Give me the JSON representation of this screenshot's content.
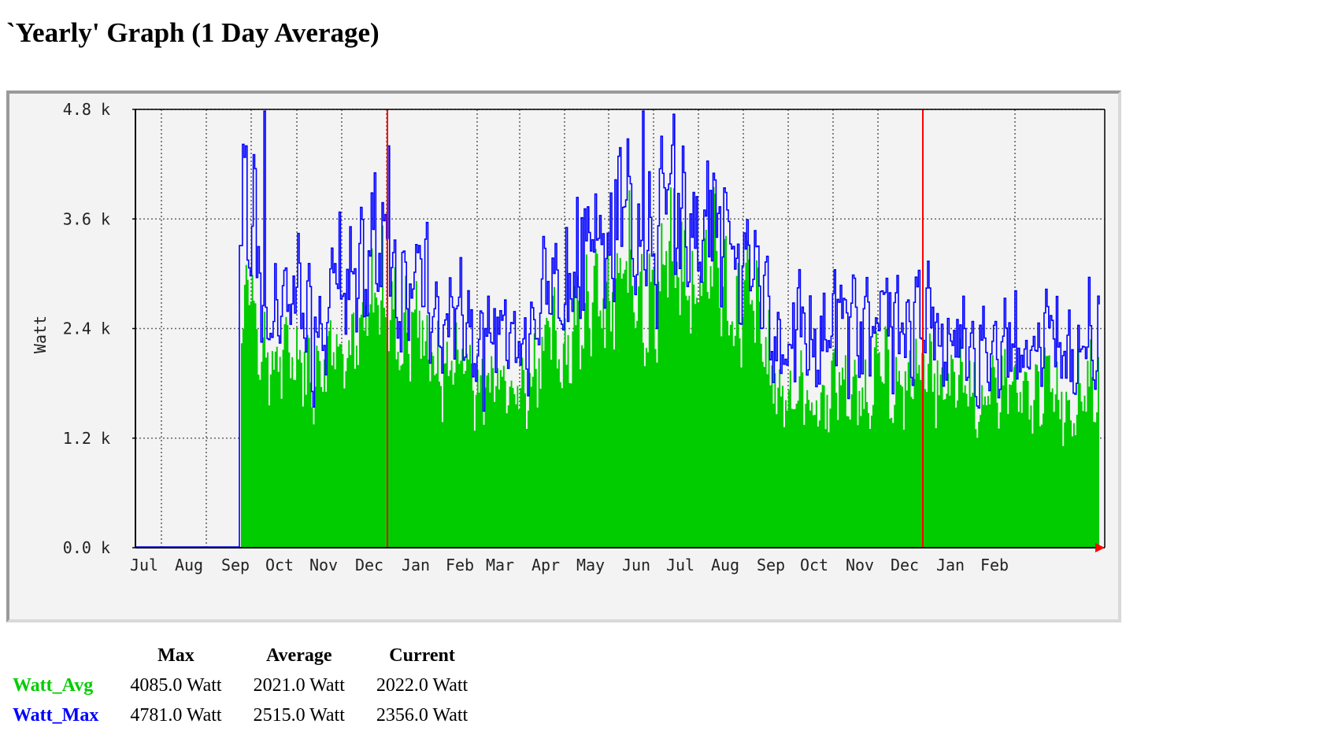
{
  "page": {
    "title": "`Yearly' Graph (1 Day Average)"
  },
  "legend": {
    "headers": [
      "",
      "Max",
      "Average",
      "Current"
    ],
    "rows": [
      {
        "name": "Watt_Avg",
        "color": "#00cc00",
        "max": "4085.0 Watt",
        "average": "2021.0 Watt",
        "current": "2022.0 Watt"
      },
      {
        "name": "Watt_Max",
        "color": "#0000ff",
        "max": "4781.0 Watt",
        "average": "2515.0 Watt",
        "current": "2356.0 Watt"
      }
    ]
  },
  "chart_data": {
    "type": "area",
    "title": "",
    "ylabel": "Watt",
    "xlabel": "",
    "ylim": [
      0,
      4800
    ],
    "yticks": [
      "0.0 k",
      "1.2 k",
      "2.4 k",
      "3.6 k",
      "4.8 k"
    ],
    "ytick_values": [
      0,
      1200,
      2400,
      3600,
      4800
    ],
    "grid": true,
    "x_start": "Jul",
    "x_end": "Feb",
    "month_ticks": [
      "Jul",
      "Aug",
      "Sep",
      "Oct",
      "Nov",
      "Dec",
      "Jan",
      "Feb",
      "Mar",
      "Apr",
      "May",
      "Jun",
      "Jul",
      "Aug",
      "Sep",
      "Oct",
      "Nov",
      "Dec",
      "Jan",
      "Feb"
    ],
    "year_boundaries": [
      "Jan",
      "Jan"
    ],
    "colors": {
      "avg_fill": "#00cc00",
      "max_line": "#0000ff",
      "year_marker": "#ff0000",
      "axis": "#000000",
      "grid": "#666666"
    },
    "x": [
      "Jul",
      "Aug",
      "Sep",
      "Oct",
      "Nov",
      "Dec",
      "Jan",
      "Feb",
      "Mar",
      "Apr",
      "May",
      "Jun",
      "Jul",
      "Aug",
      "Sep",
      "Oct",
      "Nov",
      "Dec",
      "Jan",
      "Feb"
    ],
    "series": [
      {
        "name": "Watt_Avg",
        "values": [
          0,
          0,
          2500,
          2300,
          2000,
          2200,
          2700,
          2100,
          1900,
          1800,
          2400,
          2800,
          2900,
          3100,
          2700,
          1600,
          1700,
          1800,
          1900,
          1700
        ]
      },
      {
        "name": "Watt_Max",
        "values": [
          0,
          0,
          3200,
          2900,
          2500,
          2800,
          3300,
          2600,
          2400,
          2300,
          2900,
          3600,
          3500,
          3600,
          3200,
          2200,
          2400,
          2500,
          2500,
          2200
        ]
      }
    ]
  }
}
